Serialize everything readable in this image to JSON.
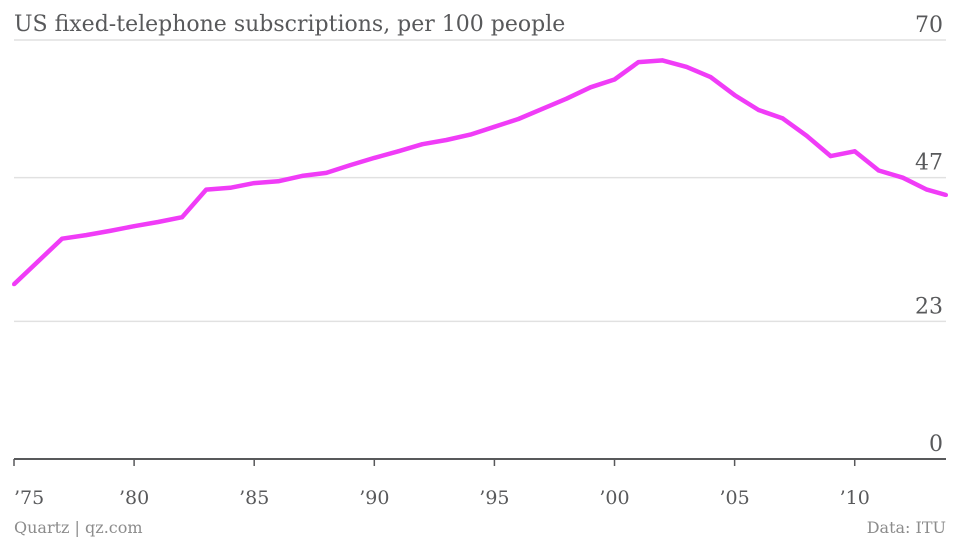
{
  "chart_data": {
    "type": "line",
    "title": "US fixed-telephone subscriptions, per 100 people",
    "xlabel": "",
    "ylabel": "",
    "xlim": [
      1975,
      2013.8
    ],
    "ylim": [
      0,
      70
    ],
    "y_ticks": [
      0,
      23,
      47,
      70
    ],
    "x_ticks": [
      {
        "year": 1975,
        "label": "’75"
      },
      {
        "year": 1980,
        "label": "’80"
      },
      {
        "year": 1985,
        "label": "’85"
      },
      {
        "year": 1990,
        "label": "’90"
      },
      {
        "year": 1995,
        "label": "’95"
      },
      {
        "year": 2000,
        "label": "’00"
      },
      {
        "year": 2005,
        "label": "’05"
      },
      {
        "year": 2010,
        "label": "’10"
      }
    ],
    "grid": true,
    "color": "#f03cf7",
    "x": [
      1975,
      1976,
      1977,
      1978,
      1979,
      1980,
      1981,
      1982,
      1983,
      1984,
      1985,
      1986,
      1987,
      1988,
      1989,
      1990,
      1991,
      1992,
      1993,
      1994,
      1995,
      1996,
      1997,
      1998,
      1999,
      2000,
      2001,
      2002,
      2003,
      2004,
      2005,
      2006,
      2007,
      2008,
      2009,
      2010,
      2011,
      2012,
      2013,
      2013.8
    ],
    "values": [
      29.2,
      33.0,
      36.8,
      37.4,
      38.1,
      38.9,
      39.6,
      40.4,
      45.0,
      45.3,
      46.1,
      46.4,
      47.3,
      47.8,
      49.1,
      50.3,
      51.4,
      52.6,
      53.3,
      54.2,
      55.5,
      56.8,
      58.5,
      60.2,
      62.1,
      63.4,
      66.3,
      66.6,
      65.5,
      63.8,
      60.8,
      58.3,
      56.9,
      54.0,
      50.6,
      51.4,
      48.2,
      47.0,
      45.0,
      44.1
    ]
  },
  "footer": {
    "source_left": "Quartz | qz.com",
    "source_right": "Data: ITU"
  }
}
